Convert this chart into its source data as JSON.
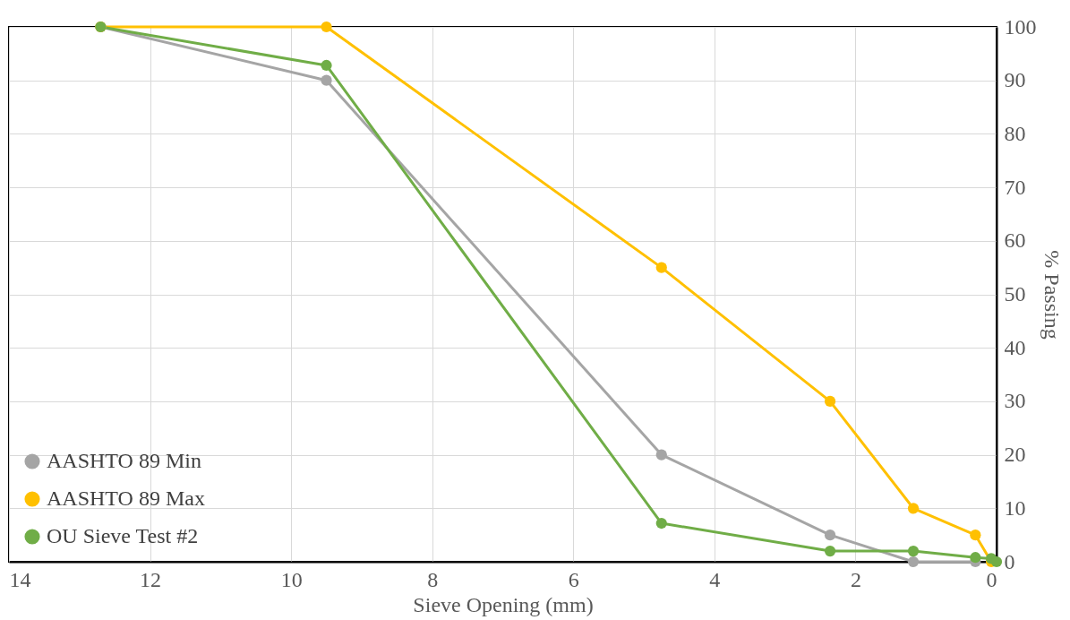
{
  "chart_data": {
    "type": "line",
    "xlabel": "Sieve Opening (mm)",
    "ylabel": "% Passing",
    "xlim": [
      14,
      0
    ],
    "xticks": [
      14,
      12,
      10,
      8,
      6,
      4,
      2,
      0
    ],
    "ylim": [
      0,
      100
    ],
    "yticks": [
      0,
      10,
      20,
      30,
      40,
      50,
      60,
      70,
      80,
      90,
      100
    ],
    "grid": true,
    "legend": "bottom left",
    "marker": "circle",
    "line_style": "solid",
    "series": [
      {
        "name": "AASHTO 89 Min",
        "color": "#a5a5a5",
        "x": [
          12.7,
          9.5,
          4.75,
          2.36,
          1.18,
          0.3
        ],
        "values": [
          100,
          90,
          20,
          5,
          0,
          0
        ]
      },
      {
        "name": "AASHTO 89 Max",
        "color": "#ffc000",
        "x": [
          12.7,
          9.5,
          4.75,
          2.36,
          1.18,
          0.3,
          0.075
        ],
        "values": [
          100,
          100,
          55,
          30,
          10,
          5,
          0
        ]
      },
      {
        "name": "OU Sieve Test #2",
        "color": "#70ad47",
        "x": [
          12.7,
          9.5,
          4.75,
          2.36,
          1.18,
          0.3,
          0.075,
          0
        ],
        "values": [
          100,
          92.8,
          7.2,
          2,
          2,
          0.8,
          0.6,
          0
        ]
      }
    ]
  }
}
